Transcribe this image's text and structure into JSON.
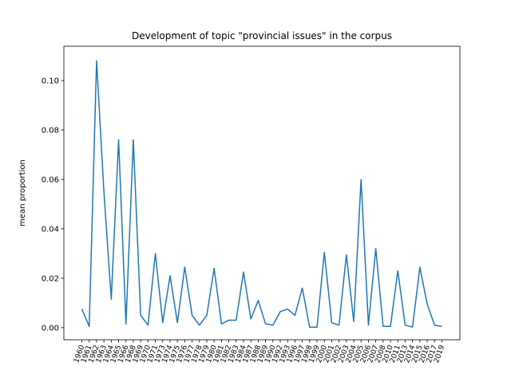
{
  "chart_data": {
    "type": "line",
    "title": "Development of topic \"provincial issues\" in the corpus",
    "y_label": "mean proportion",
    "categories": [
      "1960",
      "1961",
      "1962",
      "1963",
      "1964",
      "1965",
      "1966",
      "1968",
      "1969",
      "1970",
      "1971",
      "1973",
      "1974",
      "1975",
      "1976",
      "1977",
      "1978",
      "1979",
      "1980",
      "1981",
      "1982",
      "1983",
      "1984",
      "1987",
      "1988",
      "1989",
      "1990",
      "1992",
      "1993",
      "1996",
      "1997",
      "1998",
      "1999",
      "2000",
      "2001",
      "2002",
      "2003",
      "2004",
      "2005",
      "2006",
      "2007",
      "2008",
      "2010",
      "2011",
      "2013",
      "2014",
      "2015",
      "2016",
      "2017",
      "2019"
    ],
    "series": [
      {
        "name": "provincial issues",
        "color": "#1f77b4",
        "values": [
          0.0075,
          0.0005,
          0.108,
          0.055,
          0.0115,
          0.076,
          0.0015,
          0.076,
          0.005,
          0.001,
          0.03,
          0.002,
          0.021,
          0.002,
          0.0245,
          0.005,
          0.001,
          0.005,
          0.024,
          0.0015,
          0.003,
          0.003,
          0.0225,
          0.0035,
          0.011,
          0.0015,
          0.001,
          0.0065,
          0.0075,
          0.005,
          0.016,
          0.0002,
          0.0002,
          0.0305,
          0.002,
          0.001,
          0.0295,
          0.0025,
          0.06,
          0.001,
          0.032,
          0.0005,
          0.0005,
          0.023,
          0.001,
          0.0002,
          0.0245,
          0.0095,
          0.001,
          0.0005
        ]
      }
    ],
    "ylim": [
      -0.0049,
      0.1139
    ],
    "yticks": [
      {
        "value": 0,
        "label": "0.00"
      },
      {
        "value": 0.02,
        "label": "0.02"
      },
      {
        "value": 0.04,
        "label": "0.04"
      },
      {
        "value": 0.06,
        "label": "0.06"
      },
      {
        "value": 0.08,
        "label": "0.08"
      },
      {
        "value": 0.1,
        "label": "0.10"
      }
    ]
  }
}
